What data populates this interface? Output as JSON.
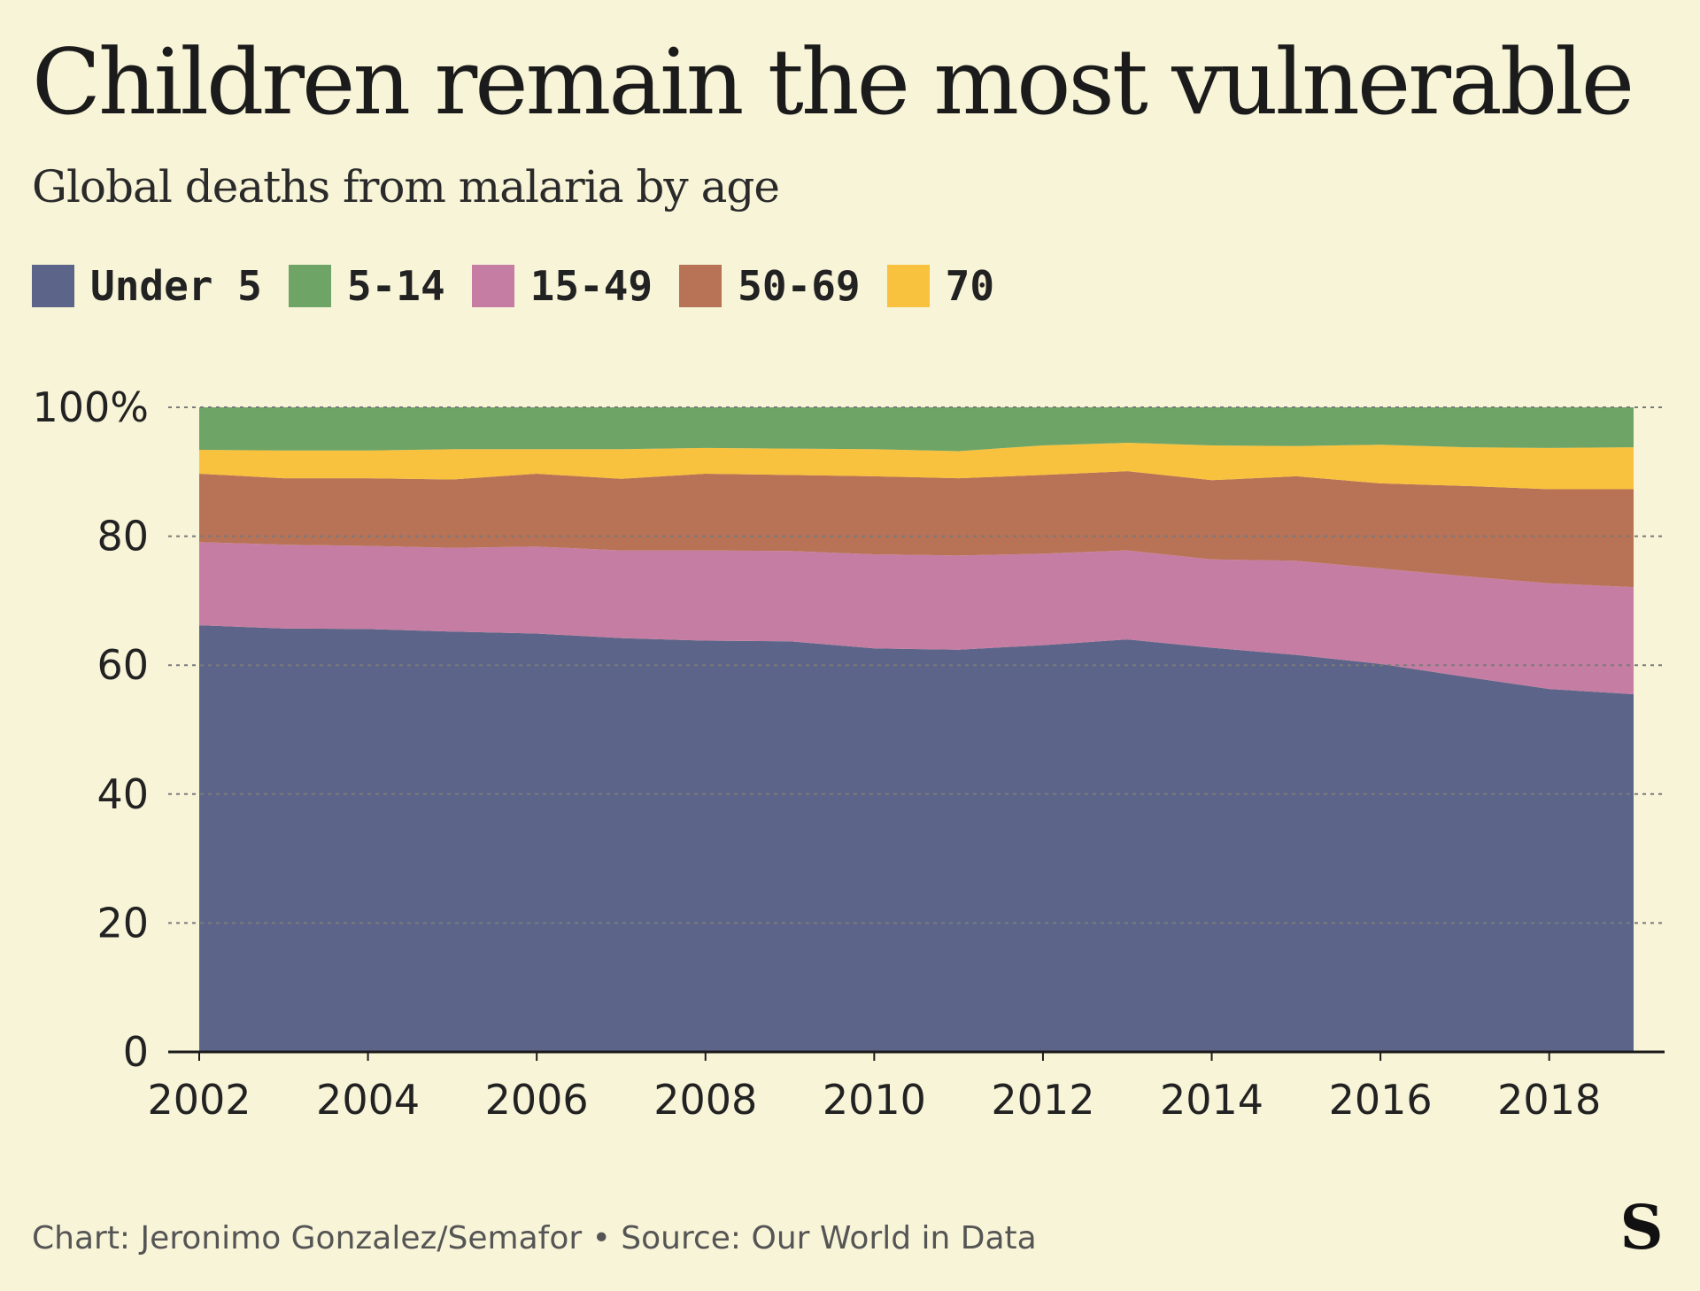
{
  "title": "Children remain the most vulnerable",
  "subtitle": "Global deaths from malaria by age",
  "footer": "Chart: Jeronimo Gonzalez/Semafor • Source: Our World in Data",
  "logo": "S",
  "colors": {
    "background": "#f8f4d8",
    "Under 5": "#5c6589",
    "5-14": "#6ea466",
    "15-49": "#c67da3",
    "50-69": "#b87256",
    "70": "#f8c23e"
  },
  "chart_data": {
    "type": "area",
    "stacked": true,
    "x": [
      2002,
      2003,
      2004,
      2005,
      2006,
      2007,
      2008,
      2009,
      2010,
      2011,
      2012,
      2013,
      2014,
      2015,
      2016,
      2017,
      2018,
      2019
    ],
    "stack_order": [
      "Under 5",
      "15-49",
      "50-69",
      "70",
      "5-14"
    ],
    "series": [
      {
        "name": "Under 5",
        "values": [
          66.2,
          65.7,
          65.6,
          65.2,
          64.9,
          64.2,
          63.8,
          63.7,
          62.6,
          62.4,
          63.1,
          64.0,
          62.7,
          61.6,
          60.2,
          58.2,
          56.3,
          55.5
        ]
      },
      {
        "name": "15-49",
        "values": [
          12.9,
          13.0,
          12.9,
          13.0,
          13.5,
          13.6,
          14.0,
          14.0,
          14.6,
          14.6,
          14.2,
          13.8,
          13.7,
          14.6,
          14.8,
          15.6,
          16.4,
          16.6
        ]
      },
      {
        "name": "50-69",
        "values": [
          10.6,
          10.3,
          10.5,
          10.6,
          11.3,
          11.1,
          11.9,
          11.8,
          12.1,
          12.0,
          12.2,
          12.3,
          12.3,
          13.1,
          13.2,
          14.0,
          14.6,
          15.2
        ]
      },
      {
        "name": "70",
        "values": [
          3.7,
          4.3,
          4.3,
          4.7,
          3.8,
          4.6,
          4.0,
          4.1,
          4.2,
          4.2,
          4.6,
          4.4,
          5.4,
          4.7,
          6.0,
          6.0,
          6.4,
          6.5
        ]
      },
      {
        "name": "5-14",
        "values": [
          6.6,
          6.7,
          6.7,
          6.5,
          6.5,
          6.5,
          6.3,
          6.4,
          6.5,
          6.8,
          5.9,
          5.5,
          5.9,
          6.0,
          5.8,
          6.2,
          6.3,
          6.2
        ]
      }
    ],
    "legend_order": [
      "Under 5",
      "5-14",
      "15-49",
      "50-69",
      "70"
    ],
    "y_ticks": [
      0,
      20,
      40,
      60,
      80,
      100
    ],
    "y_tick_labels": [
      "0",
      "20",
      "40",
      "60",
      "80",
      "100%"
    ],
    "x_ticks": [
      2002,
      2004,
      2006,
      2008,
      2010,
      2012,
      2014,
      2016,
      2018
    ],
    "x_tick_labels": [
      "2002",
      "2004",
      "2006",
      "2008",
      "2010",
      "2012",
      "2014",
      "2016",
      "2018"
    ],
    "xlim": [
      2002,
      2019
    ],
    "ylim": [
      0,
      100
    ],
    "grid": true,
    "legend_position": "top"
  }
}
